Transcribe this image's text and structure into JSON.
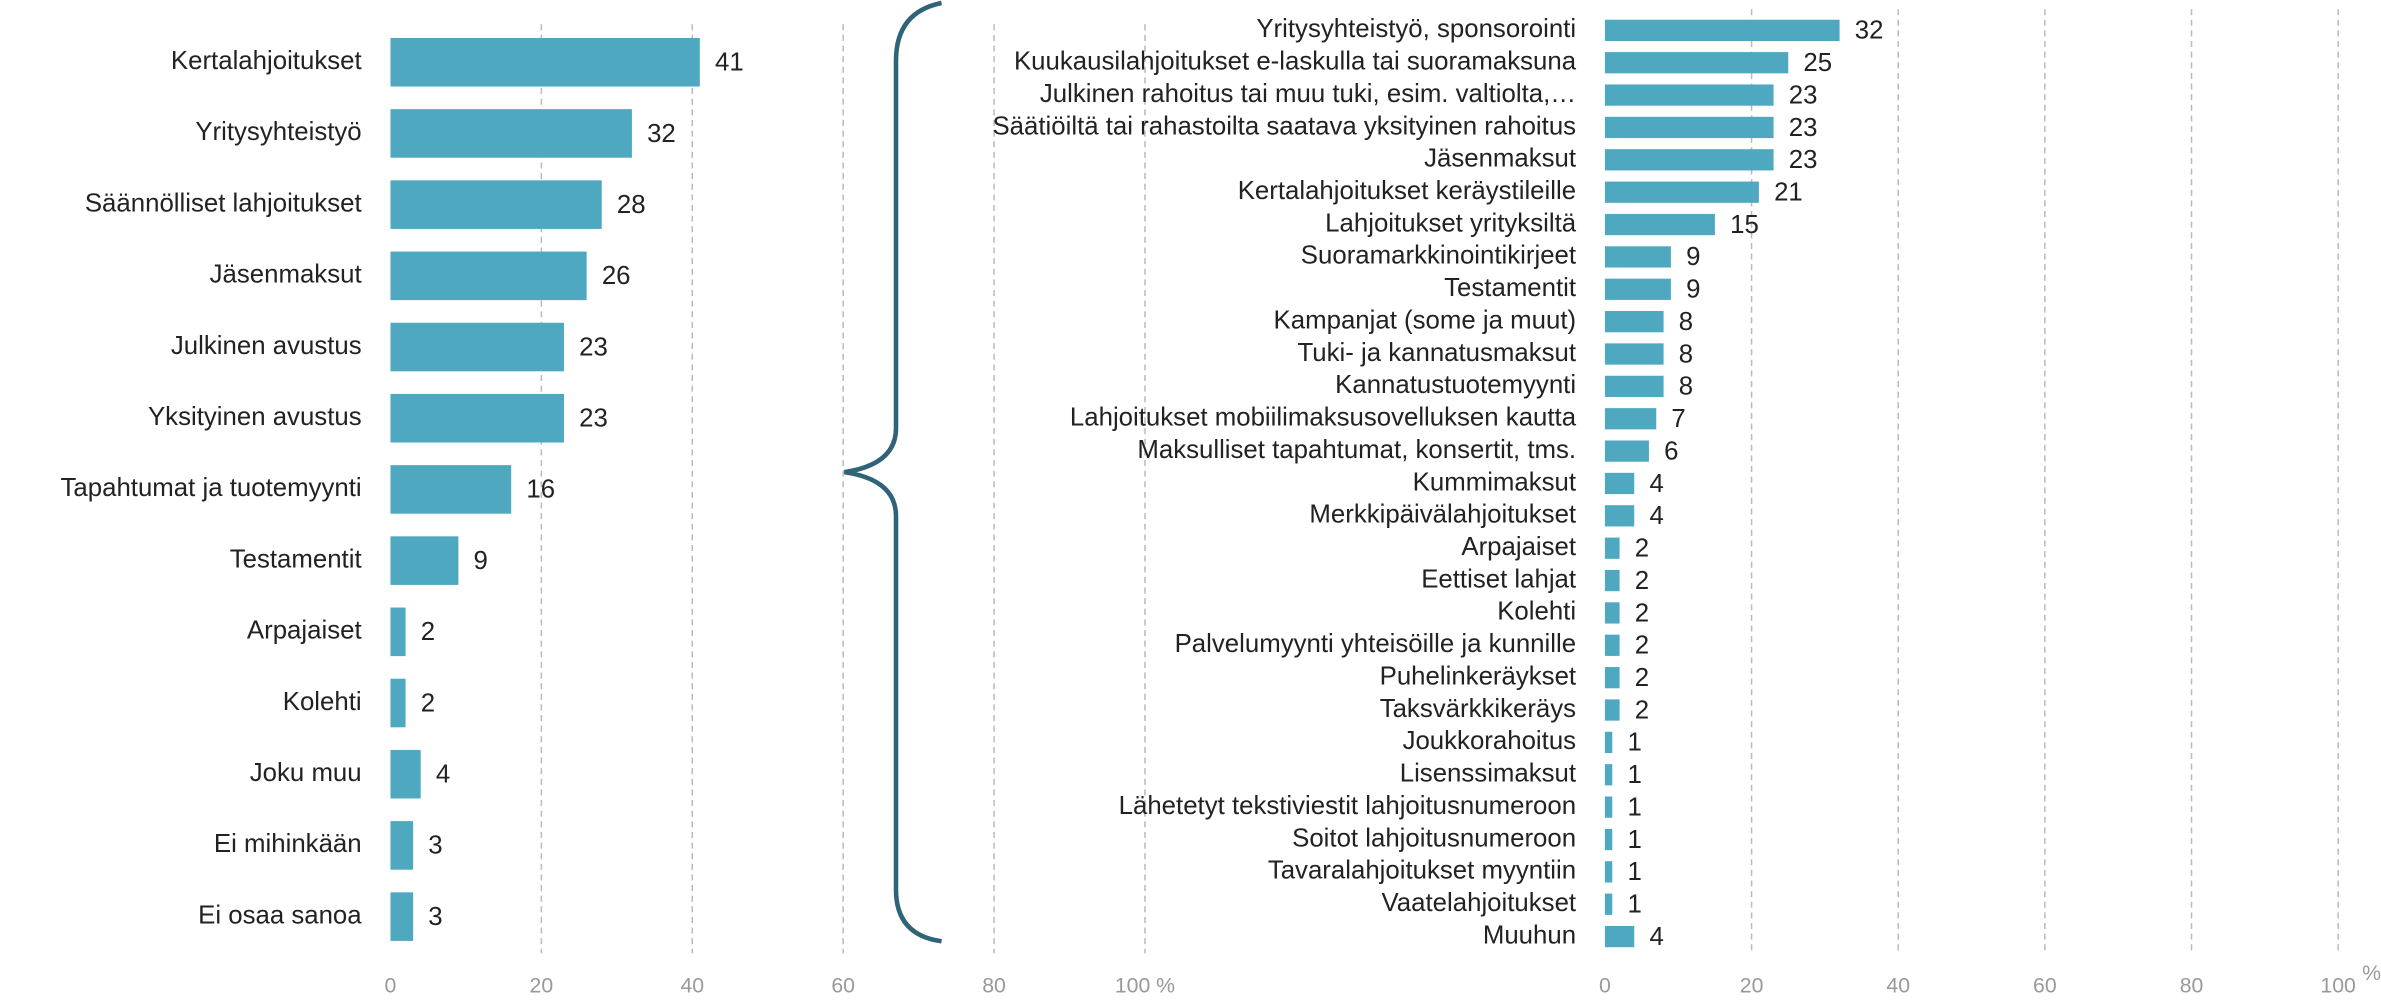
{
  "chart_data": [
    {
      "type": "bar",
      "orientation": "horizontal",
      "color": "#4ea8c0",
      "categories": [
        "Kertalahjoitukset",
        "Yritysyhteistyö",
        "Säännölliset lahjoitukset",
        "Jäsenmaksut",
        "Julkinen avustus",
        "Yksityinen avustus",
        "Tapahtumat ja tuotemyynti",
        "Testamentit",
        "Arpajaiset",
        "Kolehti",
        "Joku muu",
        "Ei mihinkään",
        "Ei osaa sanoa"
      ],
      "values": [
        41,
        32,
        28,
        26,
        23,
        23,
        16,
        9,
        2,
        2,
        4,
        3,
        3
      ],
      "xlim": [
        0,
        100
      ],
      "xticks": [
        0,
        20,
        40,
        60,
        80,
        {
          "value": 100,
          "label": "100 %"
        }
      ],
      "grid": true
    },
    {
      "type": "bar",
      "orientation": "horizontal",
      "color": "#4ea8c0",
      "x_unit": "%",
      "categories": [
        "Yritysyhteistyö, sponsorointi",
        "Kuukausilahjoitukset e-laskulla tai suoramaksuna",
        "Julkinen rahoitus tai muu tuki, esim. valtiolta,…",
        "Säätiöiltä tai rahastoilta saatava yksityinen rahoitus",
        "Jäsenmaksut",
        "Kertalahjoitukset keräystileille",
        "Lahjoitukset yrityksiltä",
        "Suoramarkkinointikirjeet",
        "Testamentit",
        "Kampanjat (some ja muut)",
        "Tuki- ja kannatusmaksut",
        "Kannatustuotemyynti",
        "Lahjoitukset mobiilimaksusovelluksen kautta",
        "Maksulliset tapahtumat, konsertit, tms.",
        "Kummimaksut",
        "Merkkipäivälahjoitukset",
        "Arpajaiset",
        "Eettiset lahjat",
        "Kolehti",
        "Palvelumyynti yhteisöille ja kunnille",
        "Puhelinkeräykset",
        "Taksvärkkikeräys",
        "Joukkorahoitus",
        "Lisenssimaksut",
        "Lähetetyt tekstiviestit lahjoitusnumeroon",
        "Soitot lahjoitusnumeroon",
        "Tavaralahjoitukset myyntiin",
        "Vaatelahjoitukset",
        "Muuhun"
      ],
      "values": [
        32,
        25,
        23,
        23,
        23,
        21,
        15,
        9,
        9,
        8,
        8,
        8,
        7,
        6,
        4,
        4,
        2,
        2,
        2,
        2,
        2,
        2,
        1,
        1,
        1,
        1,
        1,
        1,
        4
      ],
      "xlim": [
        0,
        100
      ],
      "xticks": [
        0,
        20,
        40,
        60,
        80,
        100
      ],
      "grid": true
    }
  ]
}
